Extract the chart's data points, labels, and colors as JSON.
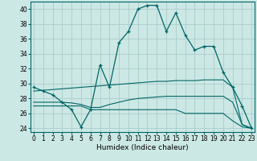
{
  "x": [
    0,
    1,
    2,
    3,
    4,
    5,
    6,
    7,
    8,
    9,
    10,
    11,
    12,
    13,
    14,
    15,
    16,
    17,
    18,
    19,
    20,
    21,
    22,
    23
  ],
  "humidex": [
    29.5,
    29.0,
    28.5,
    27.5,
    26.5,
    24.2,
    26.5,
    32.5,
    29.5,
    35.5,
    37.0,
    40.0,
    40.5,
    40.5,
    37.0,
    39.5,
    36.5,
    34.5,
    35.0,
    35.0,
    31.5,
    29.5,
    27.0,
    24.0
  ],
  "upper_line": [
    29.0,
    29.1,
    29.2,
    29.3,
    29.4,
    29.5,
    29.6,
    29.7,
    29.8,
    29.9,
    30.0,
    30.1,
    30.2,
    30.3,
    30.3,
    30.4,
    30.4,
    30.4,
    30.5,
    30.5,
    30.5,
    29.5,
    24.5,
    24.0
  ],
  "lower_line": [
    27.5,
    27.5,
    27.5,
    27.5,
    27.4,
    27.2,
    26.8,
    26.8,
    27.2,
    27.5,
    27.8,
    28.0,
    28.1,
    28.2,
    28.3,
    28.3,
    28.3,
    28.3,
    28.3,
    28.3,
    28.3,
    27.5,
    24.5,
    24.0
  ],
  "bottom_line": [
    27.0,
    27.0,
    27.0,
    27.0,
    27.0,
    27.0,
    26.5,
    26.5,
    26.5,
    26.5,
    26.5,
    26.5,
    26.5,
    26.5,
    26.5,
    26.5,
    26.0,
    26.0,
    26.0,
    26.0,
    26.0,
    25.0,
    24.2,
    24.0
  ],
  "bg_color": "#cce8e4",
  "grid_color": "#aacccc",
  "line_color": "#006666",
  "xlabel": "Humidex (Indice chaleur)",
  "ylim": [
    23.5,
    41.0
  ],
  "yticks": [
    24,
    26,
    28,
    30,
    32,
    34,
    36,
    38,
    40
  ],
  "xticks": [
    0,
    1,
    2,
    3,
    4,
    5,
    6,
    7,
    8,
    9,
    10,
    11,
    12,
    13,
    14,
    15,
    16,
    17,
    18,
    19,
    20,
    21,
    22,
    23
  ],
  "xlim": [
    -0.3,
    23.3
  ]
}
